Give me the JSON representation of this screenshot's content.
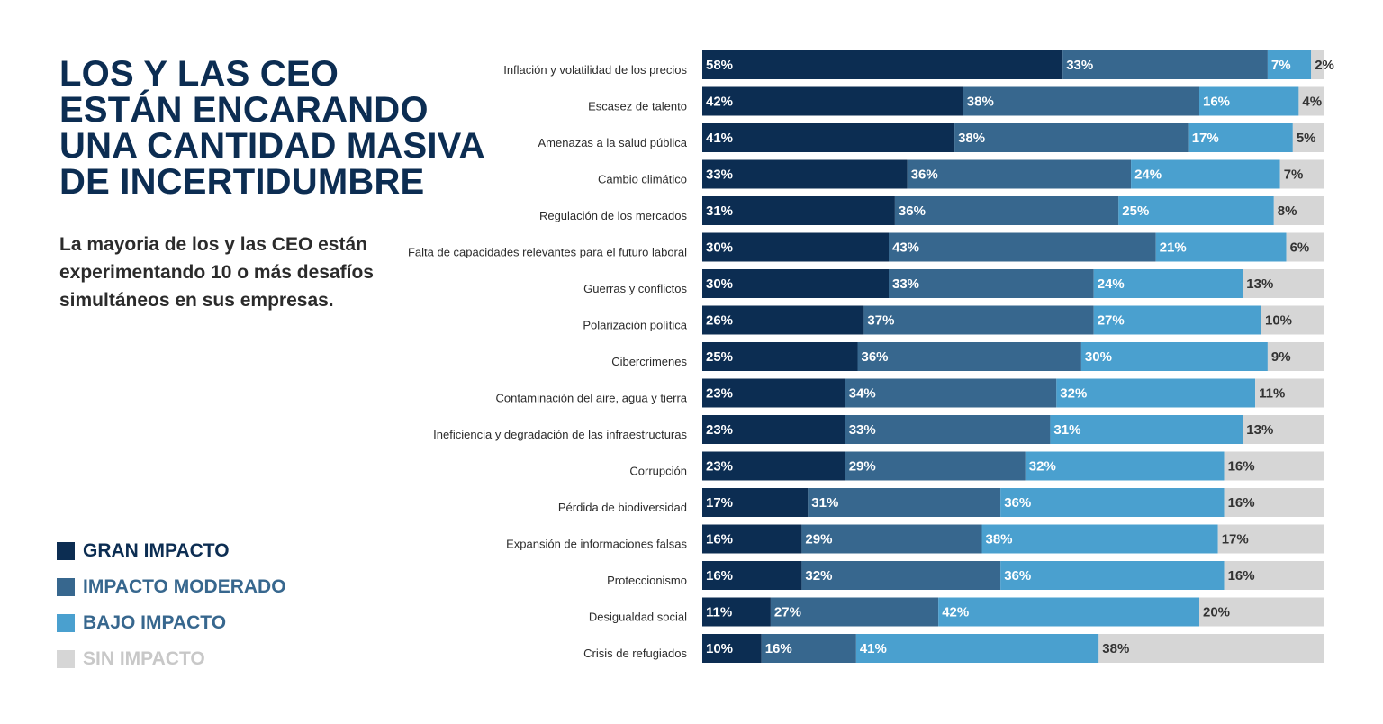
{
  "header": {
    "title_lines": [
      "LOS Y LAS CEO",
      "ESTÁN ENCARANDO",
      "UNA CANTIDAD MASIVA",
      "DE INCERTIDUMBRE"
    ],
    "subtitle_lines": [
      "La mayoria de los y las CEO están",
      "experimentando 10 o más desafíos",
      "simultáneos en sus empresas."
    ]
  },
  "colors": {
    "title": "#0c2d52",
    "gran": "#0c2d52",
    "moderado": "#37678e",
    "bajo": "#4aa0cf",
    "sin": "#d6d6d6"
  },
  "legend": [
    {
      "label": "GRAN IMPACTO",
      "color": "#0c2d52",
      "text_color": "#0c2d52"
    },
    {
      "label": "IMPACTO MODERADO",
      "color": "#37678e",
      "text_color": "#37678e"
    },
    {
      "label": "BAJO IMPACTO",
      "color": "#4aa0cf",
      "text_color": "#37678e"
    },
    {
      "label": "SIN IMPACTO",
      "color": "#d6d6d6",
      "text_color": "#c8c8c8"
    }
  ],
  "chart_data": {
    "type": "bar",
    "orientation": "horizontal",
    "stacked": true,
    "value_suffix": "%",
    "categories": [
      "Inflación y volatilidad de los precios",
      "Escasez de talento",
      "Amenazas a la salud pública",
      "Cambio climático",
      "Regulación de los mercados",
      "Falta de capacidades relevantes para el futuro laboral",
      "Guerras y conflictos",
      "Polarización política",
      "Cibercrimenes",
      "Contaminación del aire, agua y tierra",
      "Ineficiencia y degradación de las infraestructuras",
      "Corrupción",
      "Pérdida de biodiversidad",
      "Expansión de informaciones falsas",
      "Proteccionismo",
      "Desigualdad social",
      "Crisis de refugiados"
    ],
    "series": [
      {
        "name": "GRAN IMPACTO",
        "color": "#0c2d52",
        "values": [
          58,
          42,
          41,
          33,
          31,
          30,
          30,
          26,
          25,
          23,
          23,
          23,
          17,
          16,
          16,
          11,
          10
        ]
      },
      {
        "name": "IMPACTO MODERADO",
        "color": "#37678e",
        "values": [
          33,
          38,
          38,
          36,
          36,
          43,
          33,
          37,
          36,
          34,
          33,
          29,
          31,
          29,
          32,
          27,
          16
        ]
      },
      {
        "name": "BAJO IMPACTO",
        "color": "#4aa0cf",
        "values": [
          7,
          16,
          17,
          24,
          25,
          21,
          24,
          27,
          30,
          32,
          31,
          32,
          36,
          38,
          36,
          42,
          41
        ]
      },
      {
        "name": "SIN IMPACTO",
        "color": "#d6d6d6",
        "values": [
          2,
          4,
          5,
          7,
          8,
          6,
          13,
          10,
          9,
          11,
          13,
          16,
          16,
          17,
          16,
          20,
          38
        ]
      }
    ]
  }
}
